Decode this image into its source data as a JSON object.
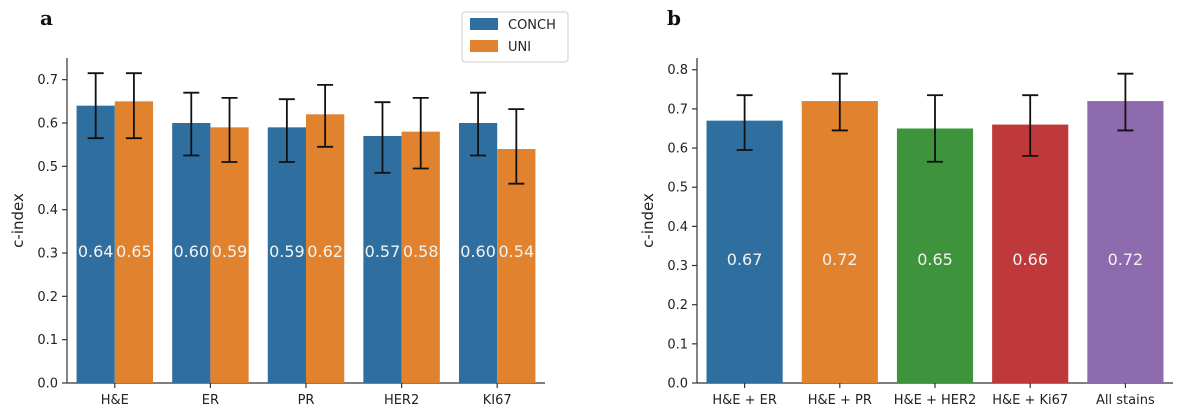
{
  "chart_data": [
    {
      "type": "bar",
      "panel": "a",
      "title": "",
      "xlabel": "",
      "ylabel": "c-index",
      "ylim": [
        0,
        0.75
      ],
      "yticks": [
        0.0,
        0.1,
        0.2,
        0.3,
        0.4,
        0.5,
        0.6,
        0.7
      ],
      "ytick_labels": [
        "0.0",
        "0.1",
        "0.2",
        "0.3",
        "0.4",
        "0.5",
        "0.6",
        "0.7"
      ],
      "categories": [
        "H&E",
        "ER",
        "PR",
        "HER2",
        "KI67"
      ],
      "series": [
        {
          "name": "CONCH",
          "color": "#2f6f9f",
          "values": [
            0.64,
            0.6,
            0.59,
            0.57,
            0.6
          ],
          "labels": [
            "0.64",
            "0.60",
            "0.59",
            "0.57",
            "0.60"
          ],
          "err_low": [
            0.565,
            0.525,
            0.51,
            0.485,
            0.525
          ],
          "err_high": [
            0.715,
            0.67,
            0.655,
            0.648,
            0.67
          ]
        },
        {
          "name": "UNI",
          "color": "#e0822e",
          "values": [
            0.65,
            0.59,
            0.62,
            0.58,
            0.54
          ],
          "labels": [
            "0.65",
            "0.59",
            "0.62",
            "0.58",
            "0.54"
          ],
          "err_low": [
            0.565,
            0.51,
            0.545,
            0.495,
            0.46
          ],
          "err_high": [
            0.715,
            0.658,
            0.688,
            0.658,
            0.632
          ]
        }
      ],
      "legend": {
        "position": "top-right",
        "entries": [
          "CONCH",
          "UNI"
        ]
      },
      "grid": false
    },
    {
      "type": "bar",
      "panel": "b",
      "title": "",
      "xlabel": "",
      "ylabel": "c-index",
      "ylim": [
        0,
        0.83
      ],
      "yticks": [
        0.0,
        0.1,
        0.2,
        0.3,
        0.4,
        0.5,
        0.6,
        0.7,
        0.8
      ],
      "ytick_labels": [
        "0.0",
        "0.1",
        "0.2",
        "0.3",
        "0.4",
        "0.5",
        "0.6",
        "0.7",
        "0.8"
      ],
      "categories": [
        "H&E + ER",
        "H&E + PR",
        "H&E + HER2",
        "H&E + Ki67",
        "All stains"
      ],
      "values": [
        0.67,
        0.72,
        0.65,
        0.66,
        0.72
      ],
      "labels": [
        "0.67",
        "0.72",
        "0.65",
        "0.66",
        "0.72"
      ],
      "colors": [
        "#2f6f9f",
        "#e0822e",
        "#3d943d",
        "#c0393a",
        "#8e6aae"
      ],
      "err_low": [
        0.595,
        0.645,
        0.565,
        0.58,
        0.645
      ],
      "err_high": [
        0.735,
        0.79,
        0.735,
        0.735,
        0.79
      ],
      "grid": false
    }
  ]
}
